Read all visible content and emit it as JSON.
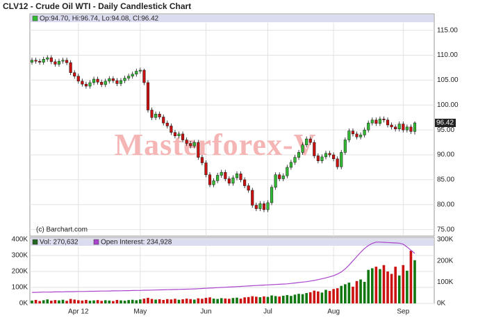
{
  "chart_data": {
    "type": "candlestick",
    "title": "CLV12 - Crude Oil WTI - Daily Candlestick Chart",
    "ohlc_legend": "Op:94.70, Hi:96.74, Lo:94.08, Cl:96.42",
    "credit": "(c) Barchart.com",
    "watermark": "Masterforex-V",
    "up_color": "#33bb33",
    "down_color": "#cc1111",
    "categories": [
      null,
      null,
      null,
      null,
      null,
      null,
      null,
      null,
      null,
      null,
      null,
      null,
      "Apr 12",
      null,
      null,
      null,
      null,
      null,
      null,
      null,
      null,
      null,
      null,
      null,
      null,
      null,
      null,
      null,
      "May",
      null,
      null,
      null,
      null,
      null,
      null,
      null,
      null,
      null,
      null,
      null,
      null,
      null,
      null,
      null,
      null,
      "Jun",
      null,
      null,
      null,
      null,
      null,
      null,
      null,
      null,
      null,
      null,
      null,
      null,
      null,
      null,
      null,
      "Jul",
      null,
      null,
      null,
      null,
      null,
      null,
      null,
      null,
      null,
      null,
      null,
      null,
      null,
      null,
      null,
      null,
      "Aug",
      null,
      null,
      null,
      null,
      null,
      null,
      null,
      null,
      null,
      null,
      null,
      null,
      null,
      null,
      null,
      null,
      null,
      "Sep",
      null,
      null,
      null
    ],
    "open": [
      108.6,
      109.0,
      108.8,
      108.6,
      109.2,
      109.5,
      108.7,
      108.2,
      108.8,
      109.0,
      108.5,
      106.5,
      105.8,
      104.8,
      104.2,
      103.8,
      104.5,
      105.2,
      104.6,
      104.1,
      104.8,
      105.3,
      104.9,
      104.3,
      104.9,
      105.4,
      105.8,
      106.2,
      106.8,
      107.0,
      104.5,
      99.0,
      97.5,
      98.2,
      97.6,
      96.4,
      95.8,
      94.5,
      93.8,
      94.2,
      93.0,
      92.3,
      91.8,
      92.5,
      89.5,
      88.4,
      86.0,
      84.0,
      84.8,
      85.9,
      86.5,
      85.2,
      84.3,
      85.4,
      86.2,
      85.0,
      83.8,
      82.9,
      79.9,
      79.2,
      80.2,
      79.0,
      80.4,
      83.5,
      86.0,
      85.2,
      85.8,
      87.5,
      88.5,
      89.5,
      90.5,
      92.0,
      93.2,
      92.5,
      89.8,
      88.8,
      89.6,
      90.3,
      90.0,
      89.2,
      87.6,
      90.5,
      93.0,
      94.8,
      94.2,
      93.6,
      94.0,
      95.0,
      96.4,
      97.0,
      96.3,
      97.2,
      97.0,
      96.0,
      95.6,
      95.2,
      96.2,
      95.0,
      95.6,
      94.7
    ],
    "high": [
      109.5,
      109.5,
      109.3,
      109.7,
      110.0,
      110.0,
      109.2,
      109.3,
      109.5,
      109.5,
      109.0,
      107.0,
      106.3,
      105.3,
      104.7,
      105.0,
      105.7,
      105.7,
      105.1,
      105.3,
      105.8,
      105.8,
      105.4,
      105.4,
      105.9,
      106.3,
      106.7,
      107.3,
      107.5,
      107.3,
      105.0,
      99.5,
      98.7,
      98.7,
      98.1,
      96.9,
      96.3,
      95.0,
      94.7,
      94.7,
      93.5,
      92.8,
      93.0,
      93.0,
      90.0,
      88.9,
      86.5,
      85.3,
      86.4,
      87.0,
      87.0,
      85.7,
      85.9,
      86.7,
      86.7,
      85.5,
      84.3,
      83.4,
      80.4,
      80.7,
      80.7,
      80.9,
      84.0,
      86.5,
      86.5,
      86.3,
      88.0,
      89.0,
      90.0,
      91.0,
      92.5,
      93.7,
      93.7,
      93.0,
      90.3,
      90.1,
      90.8,
      90.8,
      90.5,
      89.7,
      91.0,
      93.5,
      95.3,
      95.3,
      94.7,
      94.5,
      95.5,
      96.9,
      97.5,
      97.5,
      97.7,
      97.7,
      97.5,
      96.5,
      96.1,
      96.7,
      96.7,
      96.1,
      96.1,
      96.74
    ],
    "low": [
      108.1,
      108.3,
      108.1,
      108.1,
      108.7,
      108.2,
      107.7,
      107.7,
      108.3,
      108.0,
      106.0,
      105.3,
      104.3,
      103.7,
      103.3,
      103.3,
      104.0,
      104.1,
      103.6,
      103.6,
      104.3,
      104.4,
      103.8,
      103.8,
      104.4,
      104.9,
      105.3,
      105.7,
      106.3,
      104.0,
      98.5,
      97.0,
      97.0,
      97.1,
      95.9,
      95.3,
      94.0,
      93.3,
      93.3,
      92.5,
      91.8,
      91.3,
      91.3,
      89.0,
      87.9,
      85.5,
      83.5,
      83.5,
      84.3,
      85.4,
      84.7,
      83.8,
      83.8,
      84.9,
      84.5,
      83.3,
      82.4,
      79.4,
      78.7,
      78.7,
      78.5,
      78.5,
      79.9,
      83.0,
      84.7,
      84.7,
      85.3,
      87.0,
      88.0,
      89.0,
      90.0,
      91.5,
      92.0,
      89.3,
      88.3,
      88.3,
      89.1,
      89.5,
      88.7,
      87.1,
      87.1,
      90.0,
      92.5,
      93.7,
      93.1,
      93.1,
      93.5,
      94.5,
      95.9,
      95.8,
      95.8,
      96.5,
      95.5,
      95.1,
      94.7,
      94.7,
      94.5,
      94.5,
      94.2,
      94.08
    ],
    "close": [
      109.0,
      108.8,
      108.6,
      109.2,
      109.5,
      108.7,
      108.2,
      108.8,
      109.0,
      108.5,
      106.5,
      105.8,
      104.8,
      104.2,
      103.8,
      104.5,
      105.2,
      104.6,
      104.1,
      104.8,
      105.3,
      104.9,
      104.3,
      104.9,
      105.4,
      105.8,
      106.2,
      106.8,
      107.0,
      104.5,
      99.0,
      97.5,
      98.2,
      97.6,
      96.4,
      95.8,
      94.5,
      93.8,
      94.2,
      93.0,
      92.3,
      91.8,
      92.5,
      89.5,
      88.4,
      86.0,
      84.0,
      84.8,
      85.9,
      86.5,
      85.2,
      84.3,
      85.4,
      86.2,
      85.0,
      83.8,
      82.9,
      79.9,
      79.2,
      80.2,
      79.0,
      80.4,
      83.5,
      86.0,
      85.2,
      85.8,
      87.5,
      88.5,
      89.5,
      90.5,
      92.0,
      93.2,
      92.5,
      89.8,
      88.8,
      89.6,
      90.3,
      90.0,
      89.2,
      87.6,
      90.5,
      93.0,
      94.8,
      94.2,
      93.6,
      94.0,
      95.0,
      96.4,
      97.0,
      96.3,
      97.2,
      97.0,
      96.0,
      95.6,
      95.2,
      96.2,
      95.0,
      95.6,
      94.7,
      96.42
    ],
    "ylim": [
      73.7,
      118.3
    ],
    "yticks": [
      {
        "value": 75,
        "label": "75.00"
      },
      {
        "value": 80,
        "label": "80.00"
      },
      {
        "value": 85,
        "label": "85.00"
      },
      {
        "value": 90,
        "label": "90.00"
      },
      {
        "value": 95,
        "label": "95.00"
      },
      {
        "value": 100,
        "label": "100.00"
      },
      {
        "value": 105,
        "label": "105.00"
      },
      {
        "value": 110,
        "label": "110.00"
      },
      {
        "value": 115,
        "label": "115.00"
      }
    ],
    "series": [
      {
        "name": "Vol: 270,632",
        "color": "#226622",
        "values": [
          18000,
          22000,
          15000,
          20000,
          25000,
          17000,
          21000,
          19000,
          23000,
          16000,
          28000,
          24000,
          20000,
          18000,
          22000,
          17000,
          19000,
          21000,
          16000,
          20000,
          18000,
          15000,
          22000,
          19000,
          17000,
          21000,
          23000,
          20000,
          25000,
          30000,
          35000,
          28000,
          24000,
          26000,
          22000,
          27000,
          25000,
          29000,
          23000,
          26000,
          30000,
          27000,
          24000,
          32000,
          29000,
          35000,
          38000,
          30000,
          28000,
          33000,
          31000,
          29000,
          34000,
          36000,
          30000,
          38000,
          40000,
          45000,
          42000,
          39000,
          44000,
          41000,
          50000,
          46000,
          43000,
          48000,
          52000,
          47000,
          55000,
          60000,
          58000,
          65000,
          70000,
          80000,
          75000,
          68000,
          85000,
          78000,
          90000,
          95000,
          110000,
          120000,
          130000,
          105000,
          140000,
          150000,
          135000,
          210000,
          220000,
          230000,
          215000,
          240000,
          200000,
          185000,
          230000,
          175000,
          240000,
          205000,
          330000,
          270632
        ]
      },
      {
        "name": "Open Interest: 234,928",
        "color": "#aa44cc",
        "axis": "y2",
        "values": [
          52000,
          52000,
          52500,
          53000,
          53000,
          53500,
          54000,
          54000,
          54500,
          55000,
          55000,
          55500,
          56000,
          56000,
          56500,
          57000,
          57000,
          57500,
          58000,
          58000,
          58500,
          59000,
          59000,
          59500,
          60000,
          60000,
          60500,
          61000,
          61000,
          62000,
          62000,
          62500,
          63000,
          63500,
          64000,
          64500,
          65000,
          65500,
          66000,
          66500,
          67000,
          67500,
          68000,
          69000,
          70000,
          71000,
          72000,
          73000,
          74000,
          75000,
          76000,
          77000,
          78000,
          79000,
          80000,
          81000,
          82000,
          83000,
          84000,
          85000,
          86000,
          87000,
          88000,
          89000,
          90000,
          91000,
          92000,
          94000,
          96000,
          98000,
          100000,
          102000,
          105000,
          108000,
          112000,
          116000,
          120000,
          125000,
          130000,
          138000,
          148000,
          162000,
          180000,
          200000,
          220000,
          240000,
          258000,
          272000,
          282000,
          288000,
          288000,
          287000,
          286000,
          285000,
          284000,
          283000,
          278000,
          265000,
          250000,
          234928
        ]
      }
    ],
    "volume_ylim": [
      0,
      400000
    ],
    "volume_yticks": [
      {
        "value": 0,
        "label": "0K"
      },
      {
        "value": 100000,
        "label": "100K"
      },
      {
        "value": 200000,
        "label": "200K"
      },
      {
        "value": 300000,
        "label": "300K"
      },
      {
        "value": 400000,
        "label": "400K"
      }
    ],
    "y2lim": [
      0,
      300000
    ],
    "y2ticks": [
      {
        "value": 0,
        "label": "0K"
      },
      {
        "value": 100000,
        "label": "100K"
      },
      {
        "value": 200000,
        "label": "200K"
      },
      {
        "value": 300000,
        "label": "300K"
      }
    ],
    "grid": true
  }
}
